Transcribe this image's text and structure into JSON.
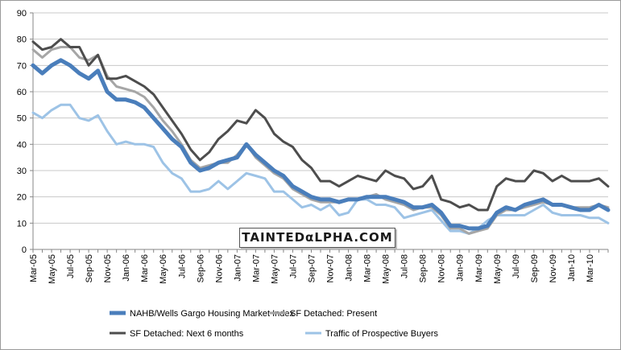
{
  "watermark": "TAINTEDαLPHA.COM",
  "chart_data": {
    "type": "line",
    "ylim": [
      0,
      90
    ],
    "yticks": [
      0,
      10,
      20,
      30,
      40,
      50,
      60,
      70,
      80,
      90
    ],
    "xtick_labels": [
      "Mar-05",
      "May-05",
      "Jul-05",
      "Sep-05",
      "Nov-05",
      "Jan-06",
      "Mar-06",
      "May-06",
      "Jul-06",
      "Sep-06",
      "Nov-06",
      "Jan-07",
      "Mar-07",
      "May-07",
      "Jul-07",
      "Sep-07",
      "Nov-07",
      "Jan-08",
      "Mar-08",
      "May-08",
      "Jul-08",
      "Sep-08",
      "Nov-08",
      "Jan-09",
      "Mar-09",
      "May-09",
      "Jul-09",
      "Sep-09",
      "Nov-09",
      "Jan-10",
      "Mar-10"
    ],
    "grid": "horizontal",
    "legend_position": "bottom",
    "series": [
      {
        "name": "NAHB/Wells Gargo Housing Market Index",
        "color": "#4a7ebb",
        "width": 5,
        "values": [
          70,
          67,
          70,
          72,
          70,
          67,
          65,
          68,
          60,
          57,
          57,
          56,
          54,
          50,
          46,
          42,
          39,
          33,
          30,
          31,
          33,
          34,
          35,
          40,
          36,
          33,
          30,
          28,
          24,
          22,
          20,
          19,
          19,
          18,
          19,
          19,
          20,
          20,
          20,
          19,
          18,
          16,
          16,
          17,
          14,
          9,
          9,
          8,
          8,
          9,
          14,
          16,
          15,
          17,
          18,
          19,
          17,
          17,
          16,
          15,
          15,
          17,
          15
        ]
      },
      {
        "name": "SF Detached: Present",
        "color": "#a6a6a6",
        "width": 3,
        "values": [
          76,
          73,
          76,
          77,
          77,
          73,
          72,
          74,
          66,
          62,
          61,
          60,
          58,
          54,
          49,
          45,
          40,
          34,
          31,
          32,
          33,
          33,
          36,
          40,
          35,
          32,
          29,
          27,
          23,
          21,
          19,
          18,
          18,
          18,
          19,
          19,
          20,
          21,
          19,
          18,
          17,
          15,
          16,
          16,
          13,
          8,
          8,
          6,
          7,
          8,
          13,
          15,
          15,
          16,
          17,
          18,
          17,
          17,
          16,
          16,
          16,
          17,
          16
        ]
      },
      {
        "name": "SF Detached: Next 6 months",
        "color": "#4d4d4d",
        "width": 3,
        "values": [
          79,
          76,
          77,
          80,
          77,
          77,
          70,
          74,
          65,
          65,
          66,
          64,
          62,
          59,
          54,
          49,
          44,
          38,
          34,
          37,
          42,
          45,
          49,
          48,
          53,
          50,
          44,
          41,
          39,
          34,
          31,
          26,
          26,
          24,
          26,
          28,
          27,
          26,
          30,
          28,
          27,
          23,
          24,
          28,
          19,
          18,
          16,
          17,
          15,
          15,
          24,
          27,
          26,
          26,
          30,
          29,
          26,
          28,
          26,
          26,
          26,
          27,
          24
        ]
      },
      {
        "name": "Traffic of Prospective Buyers",
        "color": "#9dc3e6",
        "width": 3,
        "values": [
          52,
          50,
          53,
          55,
          55,
          50,
          49,
          51,
          45,
          40,
          41,
          40,
          40,
          39,
          33,
          29,
          27,
          22,
          22,
          23,
          26,
          23,
          26,
          29,
          28,
          27,
          22,
          22,
          19,
          16,
          17,
          15,
          17,
          13,
          14,
          19,
          19,
          17,
          17,
          16,
          12,
          13,
          14,
          15,
          11,
          7,
          7,
          6,
          8,
          11,
          13,
          13,
          13,
          13,
          15,
          17,
          14,
          13,
          13,
          13,
          12,
          12,
          10
        ]
      }
    ]
  }
}
